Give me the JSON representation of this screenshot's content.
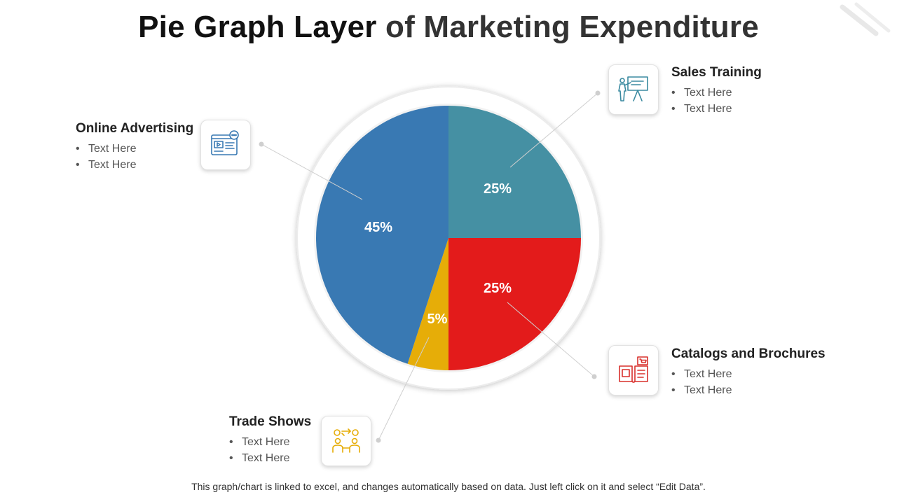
{
  "title": {
    "part1": "Pie Graph Layer",
    "part2": "of Marketing Expenditure"
  },
  "chart_data": {
    "type": "pie",
    "title": "Pie Graph Layer of Marketing Expenditure",
    "slices": [
      {
        "label": "Sales Training",
        "value": 25,
        "display": "25%",
        "color": "#4590a3"
      },
      {
        "label": "Catalogs and Brochures",
        "value": 25,
        "display": "25%",
        "color": "#e31b1b"
      },
      {
        "label": "Trade Shows",
        "value": 5,
        "display": "5%",
        "color": "#e6ad08"
      },
      {
        "label": "Online Advertising",
        "value": 45,
        "display": "45%",
        "color": "#3979b3"
      }
    ]
  },
  "callouts": {
    "sales_training": {
      "title": "Sales Training",
      "items": [
        "Text Here",
        "Text Here"
      ],
      "icon": "presentation-icon"
    },
    "online_advertising": {
      "title": "Online Advertising",
      "items": [
        "Text Here",
        "Text Here"
      ],
      "icon": "online-ad-icon"
    },
    "catalogs": {
      "title": "Catalogs and Brochures",
      "items": [
        "Text Here",
        "Text Here"
      ],
      "icon": "catalog-icon"
    },
    "trade_shows": {
      "title": "Trade Shows",
      "items": [
        "Text Here",
        "Text Here"
      ],
      "icon": "trade-show-icon"
    }
  },
  "bullet": "•",
  "footer": "This graph/chart is linked to excel, and changes automatically based on data. Just left click on it and select “Edit Data”."
}
